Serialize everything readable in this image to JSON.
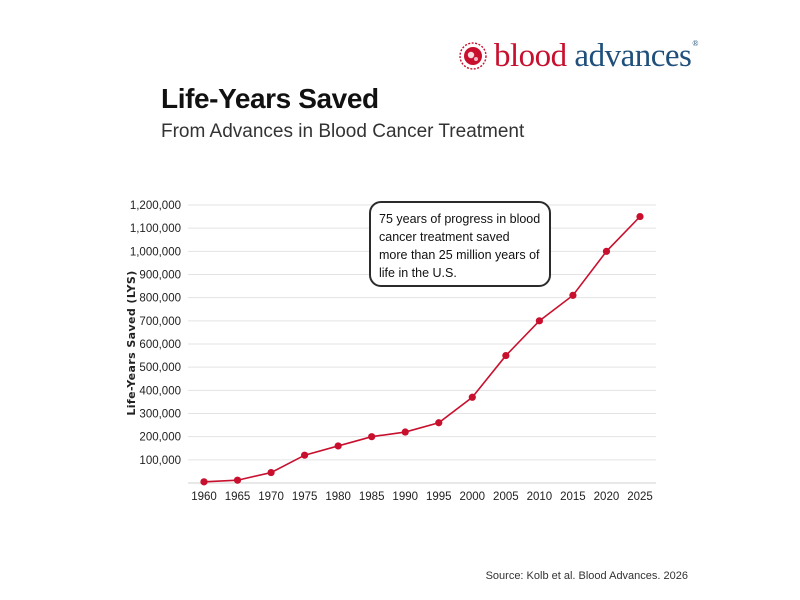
{
  "brand": {
    "name_part1": "blood",
    "name_part2": "advances",
    "registered_mark": "®",
    "colors": {
      "red": "#c8102e",
      "blue": "#1f4f7a"
    }
  },
  "chart_data": {
    "type": "line",
    "title": "Life-Years Saved",
    "subtitle": "From Advances in Blood Cancer Treatment",
    "xlabel": "",
    "ylabel": "Life-Years Saved (LYS)",
    "x": [
      1960,
      1965,
      1970,
      1975,
      1980,
      1985,
      1990,
      1995,
      2000,
      2005,
      2010,
      2015,
      2020,
      2025
    ],
    "series": [
      {
        "values": [
          5000,
          12000,
          45000,
          120000,
          160000,
          200000,
          220000,
          260000,
          370000,
          550000,
          700000,
          810000,
          1000000,
          1150000
        ],
        "color": "#c8102e"
      }
    ],
    "y_ticks": [
      "100,000",
      "200,000",
      "300,000",
      "400,000",
      "500,000",
      "600,000",
      "700,000",
      "800,000",
      "900,000",
      "1,000,000",
      "1,100,000",
      "1,200,000"
    ],
    "y_tick_values": [
      100000,
      200000,
      300000,
      400000,
      500000,
      600000,
      700000,
      800000,
      900000,
      1000000,
      1100000,
      1200000
    ],
    "ylim": [
      0,
      1200000
    ],
    "grid": true,
    "annotation": "75 years of progress in blood cancer treatment saved more than 25 million years of life in the U.S.",
    "source": "Source: Kolb et al. Blood Advances. 2026"
  }
}
